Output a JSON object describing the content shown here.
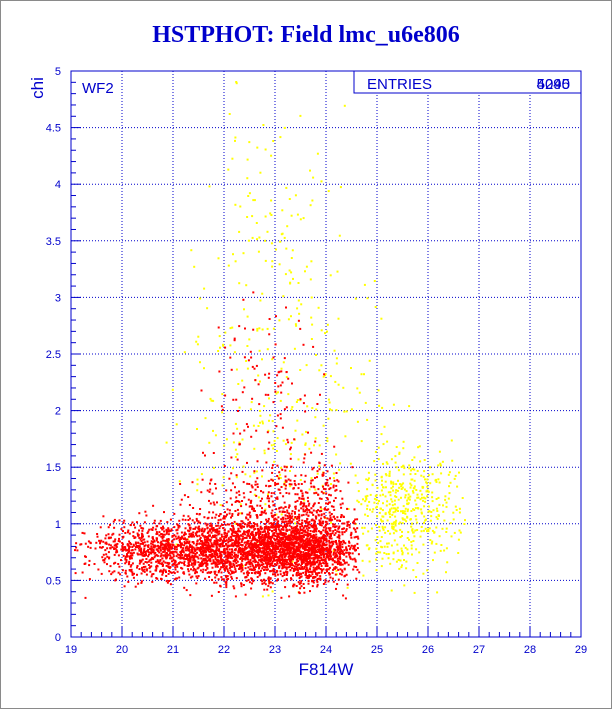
{
  "page": {
    "title": "HSTPHOT: Field lmc_u6e806"
  },
  "chart_data": {
    "type": "scatter",
    "title": "HSTPHOT: Field lmc_u6e806",
    "xlabel": "F814W",
    "ylabel": "chi",
    "xlim": [
      19,
      29
    ],
    "ylim": [
      0,
      5
    ],
    "grid": true,
    "panel_label": "WF2",
    "stats_box": {
      "label": "ENTRIES",
      "value_overlay": [
        "5095",
        "4240"
      ]
    },
    "x_ticks": [
      "19",
      "20",
      "21",
      "22",
      "23",
      "24",
      "25",
      "26",
      "27",
      "28",
      "29"
    ],
    "y_ticks": [
      "0",
      "0.5",
      "1",
      "1.5",
      "2",
      "2.5",
      "3",
      "3.5",
      "4",
      "4.5",
      "5"
    ],
    "series": [
      {
        "color": "#ff0000",
        "count_approx": 4240,
        "regions": [
          {
            "x": [
              19.0,
              24.7
            ],
            "y_center": 0.78,
            "y_spread": 0.14,
            "peak_x": 23.6,
            "weight": 0.85
          },
          {
            "x": [
              21.0,
              24.6
            ],
            "y_center": 1.15,
            "y_spread": 0.22,
            "peak_x": 23.8,
            "weight": 0.12
          },
          {
            "x": [
              21.5,
              24.0
            ],
            "y_center": 2.0,
            "y_spread": 0.5,
            "peak_x": 22.8,
            "weight": 0.03
          }
        ]
      },
      {
        "color": "#ffff00",
        "count_approx": 855,
        "regions": [
          {
            "x": [
              24.5,
              26.8
            ],
            "y_center": 1.15,
            "y_spread": 0.25,
            "peak_x": 25.3,
            "weight": 0.55
          },
          {
            "x": [
              20.5,
              25.5
            ],
            "y_center": 2.0,
            "y_spread": 0.7,
            "peak_x": 23.4,
            "weight": 0.35
          },
          {
            "x": [
              21.5,
              24.5
            ],
            "y_center": 3.8,
            "y_spread": 0.6,
            "peak_x": 22.8,
            "weight": 0.1
          }
        ]
      }
    ]
  }
}
